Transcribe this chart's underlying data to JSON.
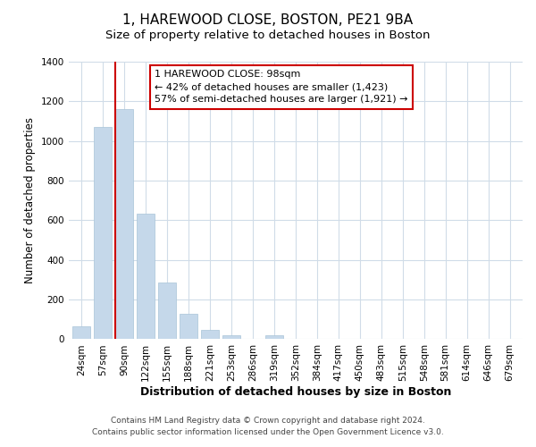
{
  "title": "1, HAREWOOD CLOSE, BOSTON, PE21 9BA",
  "subtitle": "Size of property relative to detached houses in Boston",
  "xlabel": "Distribution of detached houses by size in Boston",
  "ylabel": "Number of detached properties",
  "bar_labels": [
    "24sqm",
    "57sqm",
    "90sqm",
    "122sqm",
    "155sqm",
    "188sqm",
    "221sqm",
    "253sqm",
    "286sqm",
    "319sqm",
    "352sqm",
    "384sqm",
    "417sqm",
    "450sqm",
    "483sqm",
    "515sqm",
    "548sqm",
    "581sqm",
    "614sqm",
    "646sqm",
    "679sqm"
  ],
  "bar_heights": [
    65,
    1070,
    1160,
    635,
    285,
    130,
    47,
    20,
    0,
    20,
    0,
    0,
    0,
    0,
    0,
    0,
    0,
    0,
    0,
    0,
    0
  ],
  "bar_color": "#c5d8ea",
  "bar_edge_color": "#a8c4d8",
  "vline_x_index": 2,
  "vline_color": "#cc0000",
  "ann_line1": "1 HAREWOOD CLOSE: 98sqm",
  "ann_line2": "← 42% of detached houses are smaller (1,423)",
  "ann_line3": "57% of semi-detached houses are larger (1,921) →",
  "annotation_box_color": "#ffffff",
  "annotation_box_edge": "#cc0000",
  "ylim": [
    0,
    1400
  ],
  "yticks": [
    0,
    200,
    400,
    600,
    800,
    1000,
    1200,
    1400
  ],
  "footer_line1": "Contains HM Land Registry data © Crown copyright and database right 2024.",
  "footer_line2": "Contains public sector information licensed under the Open Government Licence v3.0.",
  "title_fontsize": 11,
  "subtitle_fontsize": 9.5,
  "xlabel_fontsize": 9,
  "ylabel_fontsize": 8.5,
  "tick_fontsize": 7.5,
  "annotation_fontsize": 8,
  "footer_fontsize": 6.5,
  "background_color": "#ffffff",
  "plot_bg_color": "#ffffff",
  "grid_color": "#d0dce8"
}
